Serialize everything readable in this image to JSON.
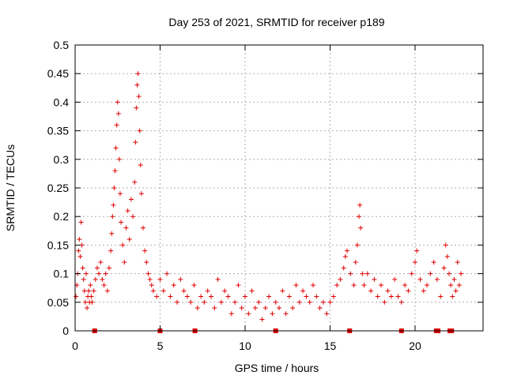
{
  "chart_data": {
    "type": "scatter",
    "title": "Day 253 of 2021, SRMTID for receiver p189",
    "xlabel": "GPS time / hours",
    "ylabel": "SRMTID / TECUs",
    "xlim": [
      0,
      24
    ],
    "ylim": [
      0,
      0.5
    ],
    "grid": true,
    "marker": "+",
    "color": "#e00000",
    "xticks": [
      0,
      5,
      10,
      15,
      20
    ],
    "yticks": [
      0,
      0.05,
      0.1,
      0.15,
      0.2,
      0.25,
      0.3,
      0.35,
      0.4,
      0.45,
      0.5
    ],
    "xtick_labels": [
      "0",
      "5",
      "10",
      "15",
      "20"
    ],
    "ytick_labels": [
      "0",
      "0.05",
      "0.1",
      "0.15",
      "0.2",
      "0.25",
      "0.3",
      "0.35",
      "0.4",
      "0.45",
      "0.5"
    ],
    "series": [
      {
        "name": "SRMTID",
        "points": [
          [
            0.05,
            0.06
          ],
          [
            0.1,
            0.08
          ],
          [
            0.15,
            0.1
          ],
          [
            0.2,
            0.14
          ],
          [
            0.25,
            0.16
          ],
          [
            0.3,
            0.13
          ],
          [
            0.35,
            0.19
          ],
          [
            0.4,
            0.15
          ],
          [
            0.45,
            0.11
          ],
          [
            0.5,
            0.09
          ],
          [
            0.55,
            0.07
          ],
          [
            0.6,
            0.05
          ],
          [
            0.65,
            0.1
          ],
          [
            0.7,
            0.04
          ],
          [
            0.75,
            0.06
          ],
          [
            0.8,
            0.07
          ],
          [
            0.85,
            0.05
          ],
          [
            0.9,
            0.08
          ],
          [
            0.95,
            0.06
          ],
          [
            1.0,
            0.05
          ],
          [
            1.1,
            0.07
          ],
          [
            1.2,
            0.09
          ],
          [
            1.3,
            0.11
          ],
          [
            1.4,
            0.1
          ],
          [
            1.5,
            0.12
          ],
          [
            1.6,
            0.09
          ],
          [
            1.7,
            0.08
          ],
          [
            1.8,
            0.1
          ],
          [
            1.9,
            0.07
          ],
          [
            2.0,
            0.11
          ],
          [
            2.1,
            0.14
          ],
          [
            2.15,
            0.17
          ],
          [
            2.2,
            0.2
          ],
          [
            2.25,
            0.22
          ],
          [
            2.3,
            0.25
          ],
          [
            2.35,
            0.28
          ],
          [
            2.4,
            0.32
          ],
          [
            2.45,
            0.36
          ],
          [
            2.5,
            0.4
          ],
          [
            2.55,
            0.38
          ],
          [
            2.6,
            0.3
          ],
          [
            2.65,
            0.24
          ],
          [
            2.7,
            0.19
          ],
          [
            2.8,
            0.15
          ],
          [
            2.9,
            0.12
          ],
          [
            3.0,
            0.18
          ],
          [
            3.1,
            0.21
          ],
          [
            3.2,
            0.16
          ],
          [
            3.3,
            0.23
          ],
          [
            3.4,
            0.2
          ],
          [
            3.5,
            0.26
          ],
          [
            3.55,
            0.33
          ],
          [
            3.6,
            0.39
          ],
          [
            3.65,
            0.43
          ],
          [
            3.7,
            0.45
          ],
          [
            3.75,
            0.41
          ],
          [
            3.8,
            0.35
          ],
          [
            3.85,
            0.29
          ],
          [
            3.9,
            0.24
          ],
          [
            4.0,
            0.18
          ],
          [
            4.1,
            0.14
          ],
          [
            4.2,
            0.12
          ],
          [
            4.3,
            0.1
          ],
          [
            4.4,
            0.09
          ],
          [
            4.5,
            0.08
          ],
          [
            4.6,
            0.07
          ],
          [
            4.8,
            0.06
          ],
          [
            5.0,
            0.09
          ],
          [
            5.2,
            0.07
          ],
          [
            5.4,
            0.1
          ],
          [
            5.6,
            0.06
          ],
          [
            5.8,
            0.08
          ],
          [
            6.0,
            0.05
          ],
          [
            6.2,
            0.09
          ],
          [
            6.4,
            0.07
          ],
          [
            6.6,
            0.06
          ],
          [
            6.8,
            0.05
          ],
          [
            7.0,
            0.08
          ],
          [
            7.2,
            0.04
          ],
          [
            7.4,
            0.06
          ],
          [
            7.6,
            0.05
          ],
          [
            7.8,
            0.07
          ],
          [
            8.0,
            0.06
          ],
          [
            8.2,
            0.04
          ],
          [
            8.4,
            0.09
          ],
          [
            8.6,
            0.05
          ],
          [
            8.8,
            0.07
          ],
          [
            9.0,
            0.06
          ],
          [
            9.2,
            0.03
          ],
          [
            9.4,
            0.05
          ],
          [
            9.6,
            0.08
          ],
          [
            9.8,
            0.04
          ],
          [
            10.0,
            0.06
          ],
          [
            10.2,
            0.03
          ],
          [
            10.4,
            0.07
          ],
          [
            10.6,
            0.04
          ],
          [
            10.8,
            0.05
          ],
          [
            11.0,
            0.02
          ],
          [
            11.2,
            0.04
          ],
          [
            11.4,
            0.06
          ],
          [
            11.6,
            0.03
          ],
          [
            11.8,
            0.05
          ],
          [
            12.0,
            0.04
          ],
          [
            12.2,
            0.07
          ],
          [
            12.4,
            0.03
          ],
          [
            12.6,
            0.06
          ],
          [
            12.8,
            0.04
          ],
          [
            13.0,
            0.08
          ],
          [
            13.2,
            0.05
          ],
          [
            13.4,
            0.07
          ],
          [
            13.6,
            0.06
          ],
          [
            13.8,
            0.05
          ],
          [
            14.0,
            0.08
          ],
          [
            14.2,
            0.06
          ],
          [
            14.4,
            0.04
          ],
          [
            14.6,
            0.05
          ],
          [
            14.8,
            0.03
          ],
          [
            15.0,
            0.05
          ],
          [
            15.2,
            0.06
          ],
          [
            15.4,
            0.08
          ],
          [
            15.6,
            0.09
          ],
          [
            15.8,
            0.11
          ],
          [
            15.9,
            0.13
          ],
          [
            16.0,
            0.14
          ],
          [
            16.2,
            0.1
          ],
          [
            16.4,
            0.08
          ],
          [
            16.5,
            0.12
          ],
          [
            16.6,
            0.15
          ],
          [
            16.7,
            0.2
          ],
          [
            16.75,
            0.22
          ],
          [
            16.8,
            0.18
          ],
          [
            16.9,
            0.1
          ],
          [
            17.0,
            0.08
          ],
          [
            17.2,
            0.1
          ],
          [
            17.4,
            0.07
          ],
          [
            17.6,
            0.09
          ],
          [
            17.8,
            0.06
          ],
          [
            18.0,
            0.08
          ],
          [
            18.2,
            0.05
          ],
          [
            18.4,
            0.07
          ],
          [
            18.6,
            0.06
          ],
          [
            18.8,
            0.09
          ],
          [
            19.0,
            0.06
          ],
          [
            19.2,
            0.05
          ],
          [
            19.4,
            0.08
          ],
          [
            19.6,
            0.07
          ],
          [
            19.8,
            0.1
          ],
          [
            20.0,
            0.12
          ],
          [
            20.1,
            0.14
          ],
          [
            20.3,
            0.09
          ],
          [
            20.5,
            0.07
          ],
          [
            20.7,
            0.08
          ],
          [
            20.9,
            0.1
          ],
          [
            21.1,
            0.12
          ],
          [
            21.3,
            0.09
          ],
          [
            21.5,
            0.06
          ],
          [
            21.7,
            0.11
          ],
          [
            21.8,
            0.15
          ],
          [
            21.9,
            0.13
          ],
          [
            22.0,
            0.1
          ],
          [
            22.1,
            0.08
          ],
          [
            22.2,
            0.06
          ],
          [
            22.3,
            0.09
          ],
          [
            22.4,
            0.07
          ],
          [
            22.5,
            0.12
          ],
          [
            22.6,
            0.08
          ],
          [
            22.7,
            0.1
          ]
        ]
      }
    ],
    "baseline_markers_x": [
      1.15,
      5.0,
      7.05,
      11.8,
      16.15,
      19.2,
      21.25,
      21.35,
      22.05,
      22.15
    ]
  }
}
